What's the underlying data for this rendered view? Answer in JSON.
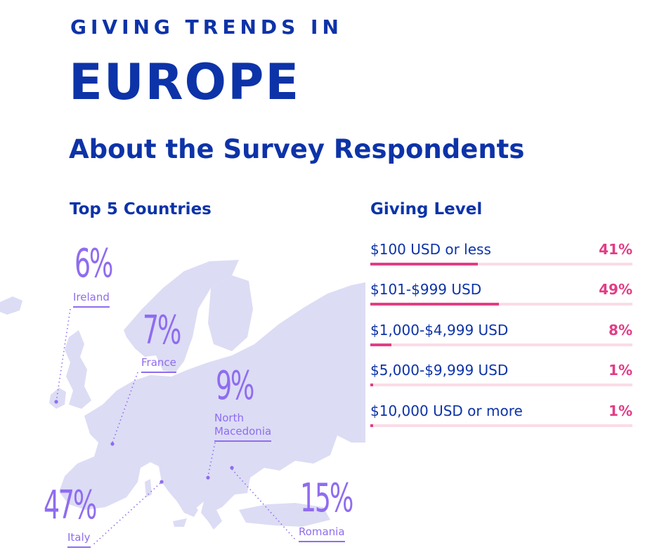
{
  "header": {
    "kicker": "GIVING TRENDS IN",
    "title": "EUROPE",
    "subtitle": "About the Survey Respondents"
  },
  "chart_data": [
    {
      "type": "map-callouts",
      "title": "Top 5 Countries",
      "categories": [
        "Ireland",
        "France",
        "North Macedonia",
        "Italy",
        "Romania"
      ],
      "values": [
        6,
        7,
        9,
        47,
        15
      ],
      "labels": [
        "6%",
        "7%",
        "9%",
        "47%",
        "15%"
      ],
      "label_lines": {
        "North Macedonia": [
          "North",
          "Macedonia"
        ]
      },
      "unit": "%"
    },
    {
      "type": "bar",
      "orientation": "horizontal",
      "title": "Giving Level",
      "categories": [
        "$100 USD or less",
        "$101-$999 USD",
        "$1,000-$4,999 USD",
        "$5,000-$9,999 USD",
        "$10,000 USD or more"
      ],
      "values": [
        41,
        49,
        8,
        1,
        1
      ],
      "labels": [
        "41%",
        "49%",
        "8%",
        "1%",
        "1%"
      ],
      "xlim": [
        0,
        100
      ]
    }
  ],
  "colors": {
    "navy": "#0d33a8",
    "purple": "#8f6cf0",
    "map": "#dcdcf5",
    "pink": "#e23d86",
    "pink_track": "#fbdbe8"
  }
}
